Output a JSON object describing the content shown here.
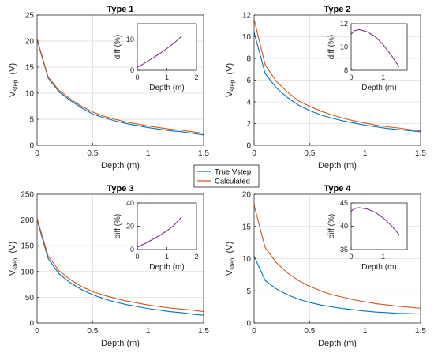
{
  "colors": {
    "true_vstep": "#0072BD",
    "calculated": "#D95319",
    "diff": "#7E2F8E",
    "grid": "#dcdcdc",
    "axis": "#262626"
  },
  "legend": {
    "placement": "center",
    "entries": [
      "True Vstep",
      "Calculated"
    ]
  },
  "chart_data": [
    {
      "type": "line",
      "title": "Type 1",
      "xlabel": "Depth  (m)",
      "ylabel": "V_step  (V)",
      "xlim": [
        0,
        1.5
      ],
      "ylim": [
        0,
        25
      ],
      "xticks": [
        0,
        0.5,
        1,
        1.5
      ],
      "xticklabels": [
        "0",
        "0.5",
        "1",
        "1.5"
      ],
      "yticks": [
        0,
        5,
        10,
        15,
        20,
        25
      ],
      "yticklabels": [
        "0",
        "5",
        "10",
        "15",
        "20",
        "25"
      ],
      "grid": true,
      "x": [
        0,
        0.1,
        0.2,
        0.3,
        0.4,
        0.5,
        0.6,
        0.7,
        0.8,
        0.9,
        1.0,
        1.1,
        1.2,
        1.3,
        1.4,
        1.5
      ],
      "series": [
        {
          "name": "True Vstep",
          "values": [
            20.2,
            12.9,
            10.2,
            8.6,
            7.2,
            6.0,
            5.3,
            4.7,
            4.2,
            3.8,
            3.4,
            3.1,
            2.8,
            2.6,
            2.3,
            2.0
          ]
        },
        {
          "name": "Calculated",
          "values": [
            20.4,
            13.1,
            10.5,
            8.9,
            7.5,
            6.4,
            5.6,
            5.0,
            4.5,
            4.1,
            3.7,
            3.4,
            3.1,
            2.9,
            2.6,
            2.3
          ]
        }
      ],
      "inset": {
        "xlabel": "Depth  (m)",
        "ylabel": "diff (%)",
        "xlim": [
          0,
          2
        ],
        "ylim": [
          0,
          15
        ],
        "xticks": [
          0,
          1,
          2
        ],
        "xticklabels": [
          "0",
          "1",
          "2"
        ],
        "yticks": [
          0,
          10
        ],
        "yticklabels": [
          "0",
          "10"
        ],
        "x": [
          0,
          0.25,
          0.5,
          0.75,
          1.0,
          1.25,
          1.5
        ],
        "values": [
          1.0,
          2.3,
          3.8,
          5.3,
          7.0,
          8.8,
          11.0
        ]
      }
    },
    {
      "type": "line",
      "title": "Type 2",
      "xlabel": "Depth  (m)",
      "ylabel": "V_step  (V)",
      "xlim": [
        0,
        1.5
      ],
      "ylim": [
        0,
        12
      ],
      "xticks": [
        0,
        0.5,
        1,
        1.5
      ],
      "xticklabels": [
        "0",
        "0.5",
        "1",
        "1.5"
      ],
      "yticks": [
        0,
        2,
        4,
        6,
        8,
        10,
        12
      ],
      "yticklabels": [
        "0",
        "2",
        "4",
        "6",
        "8",
        "10",
        "12"
      ],
      "grid": true,
      "x": [
        0,
        0.1,
        0.2,
        0.3,
        0.4,
        0.5,
        0.6,
        0.7,
        0.8,
        0.9,
        1.0,
        1.1,
        1.2,
        1.3,
        1.4,
        1.5
      ],
      "series": [
        {
          "name": "True Vstep",
          "values": [
            10.4,
            6.6,
            5.3,
            4.4,
            3.7,
            3.2,
            2.8,
            2.5,
            2.25,
            2.05,
            1.85,
            1.7,
            1.55,
            1.45,
            1.35,
            1.25
          ]
        },
        {
          "name": "Calculated",
          "values": [
            11.6,
            7.4,
            5.9,
            4.9,
            4.1,
            3.6,
            3.15,
            2.8,
            2.5,
            2.25,
            2.05,
            1.85,
            1.7,
            1.6,
            1.45,
            1.35
          ]
        }
      ],
      "inset": {
        "xlabel": "Depth  (m)",
        "ylabel": "diff (%)",
        "xlim": [
          0,
          1.75
        ],
        "ylim": [
          8,
          12
        ],
        "xticks": [
          0,
          1
        ],
        "xticklabels": [
          "0",
          "1"
        ],
        "yticks": [
          8,
          10,
          12
        ],
        "yticklabels": [
          "8",
          "10",
          "12"
        ],
        "x": [
          0,
          0.1,
          0.25,
          0.5,
          0.75,
          1.0,
          1.25,
          1.5
        ],
        "values": [
          11.1,
          11.4,
          11.5,
          11.3,
          10.9,
          10.2,
          9.3,
          8.3
        ]
      }
    },
    {
      "type": "line",
      "title": "Type 3",
      "xlabel": "Depth  (m)",
      "ylabel": "V_step  (V)",
      "xlim": [
        0,
        1.5
      ],
      "ylim": [
        0,
        250
      ],
      "xticks": [
        0,
        0.5,
        1,
        1.5
      ],
      "xticklabels": [
        "0",
        "0.5",
        "1",
        "1.5"
      ],
      "yticks": [
        0,
        50,
        100,
        150,
        200,
        250
      ],
      "yticklabels": [
        "0",
        "50",
        "100",
        "150",
        "200",
        "250"
      ],
      "grid": true,
      "x": [
        0,
        0.1,
        0.2,
        0.3,
        0.4,
        0.5,
        0.6,
        0.7,
        0.8,
        0.9,
        1.0,
        1.1,
        1.2,
        1.3,
        1.4,
        1.5
      ],
      "series": [
        {
          "name": "True Vstep",
          "values": [
            200,
            125,
            95,
            78,
            65,
            55,
            47,
            41,
            36,
            32,
            28,
            25,
            22,
            20,
            17,
            15
          ]
        },
        {
          "name": "Calculated",
          "values": [
            203,
            130,
            101,
            84,
            71,
            61,
            54,
            48,
            43,
            39,
            35,
            32,
            29,
            27,
            25,
            22
          ]
        }
      ],
      "inset": {
        "xlabel": "Depth  (m)",
        "ylabel": "diff (%)",
        "xlim": [
          0,
          2
        ],
        "ylim": [
          0,
          40
        ],
        "xticks": [
          0,
          1,
          2
        ],
        "xticklabels": [
          "0",
          "1",
          "2"
        ],
        "yticks": [
          0,
          20,
          40
        ],
        "yticklabels": [
          "0",
          "20",
          "40"
        ],
        "x": [
          0,
          0.25,
          0.5,
          0.75,
          1.0,
          1.25,
          1.5
        ],
        "values": [
          2,
          5,
          8.5,
          12,
          16,
          21,
          28
        ]
      }
    },
    {
      "type": "line",
      "title": "Type 4",
      "xlabel": "Depth  (m)",
      "ylabel": "V_step  (V)",
      "xlim": [
        0,
        1.5
      ],
      "ylim": [
        0,
        20
      ],
      "xticks": [
        0,
        0.5,
        1,
        1.5
      ],
      "xticklabels": [
        "0",
        "0.5",
        "1",
        "1.5"
      ],
      "yticks": [
        0,
        5,
        10,
        15,
        20
      ],
      "yticklabels": [
        "0",
        "5",
        "10",
        "15",
        "20"
      ],
      "grid": true,
      "x": [
        0,
        0.1,
        0.2,
        0.3,
        0.4,
        0.5,
        0.6,
        0.7,
        0.8,
        0.9,
        1.0,
        1.1,
        1.2,
        1.3,
        1.4,
        1.5
      ],
      "series": [
        {
          "name": "True Vstep",
          "values": [
            10.4,
            6.6,
            5.3,
            4.4,
            3.7,
            3.2,
            2.8,
            2.5,
            2.25,
            2.05,
            1.85,
            1.7,
            1.6,
            1.5,
            1.45,
            1.4
          ]
        },
        {
          "name": "Calculated",
          "values": [
            18.3,
            11.7,
            9.4,
            7.8,
            6.6,
            5.7,
            5.0,
            4.4,
            4.0,
            3.6,
            3.3,
            3.0,
            2.8,
            2.6,
            2.45,
            2.3
          ]
        }
      ],
      "inset": {
        "xlabel": "Depth  (m)",
        "ylabel": "diff (%)",
        "xlim": [
          0,
          1.75
        ],
        "ylim": [
          35,
          45
        ],
        "xticks": [
          0,
          1
        ],
        "xticklabels": [
          "0",
          "1"
        ],
        "yticks": [
          35,
          40,
          45
        ],
        "yticklabels": [
          "35",
          "40",
          "45"
        ],
        "x": [
          0,
          0.1,
          0.25,
          0.5,
          0.75,
          1.0,
          1.25,
          1.5
        ],
        "values": [
          43.2,
          43.8,
          44.0,
          43.7,
          43.0,
          41.8,
          40.2,
          38.2
        ]
      }
    }
  ]
}
